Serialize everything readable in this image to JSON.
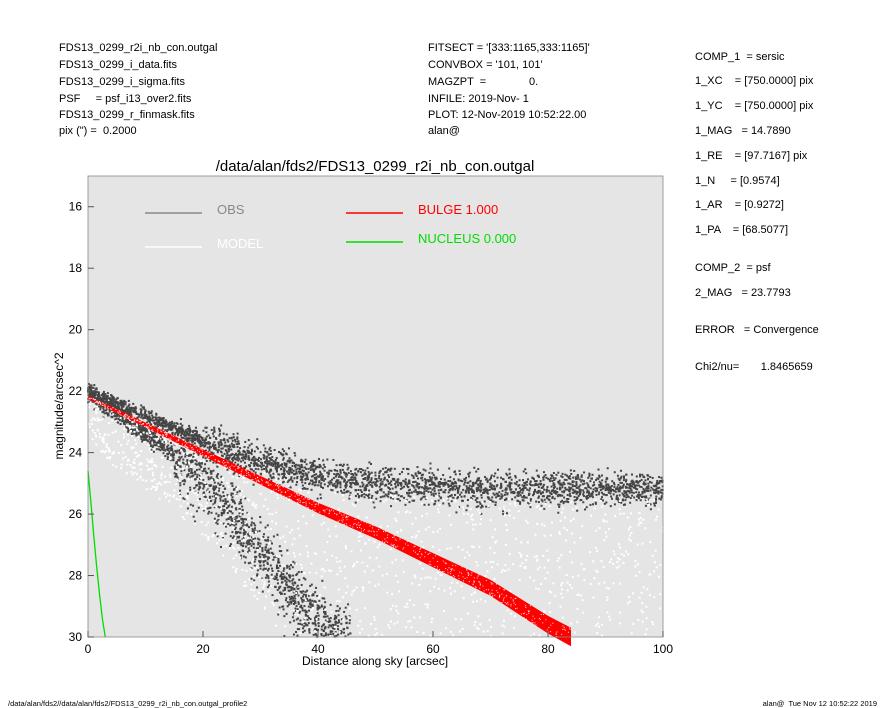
{
  "header": {
    "left": [
      "FDS13_0299_r2i_nb_con.outgal",
      "FDS13_0299_i_data.fits",
      "FDS13_0299_i_sigma.fits",
      "PSF     = psf_i13_over2.fits",
      "FDS13_0299_r_finmask.fits",
      "pix (\") =  0.2000"
    ],
    "middle": [
      "FITSECT = '[333:1165,333:1165]'",
      "CONVBOX = '101, 101'",
      "MAGZPT  =              0.",
      "INFILE: 2019-Nov- 1",
      "PLOT: 12-Nov-2019 10:52:22.00",
      "alan@"
    ]
  },
  "params": {
    "comp1": "COMP_1  = sersic",
    "xc": "1_XC    = [750.0000] pix",
    "yc": "1_YC    = [750.0000] pix",
    "mag": "1_MAG   = 14.7890",
    "re": "1_RE    = [97.7167] pix",
    "n": "1_N     = [0.9574]",
    "ar": "1_AR    = [0.9272]",
    "pa": "1_PA    = [68.5077]",
    "comp2": "COMP_2  = psf",
    "mag2": "2_MAG   = 23.7793",
    "error": "ERROR   = Convergence",
    "chi2": "Chi2/nu=       1.8465659"
  },
  "footer": {
    "left": "/data/alan/fds2//data/alan/fds2/FDS13_0299_r2i_nb_con.outgal_profile2",
    "right": "alan@  Tue Nov 12 10:52:22 2019"
  },
  "colors": {
    "background_plot": "#e5e5e5",
    "obs": "#444444",
    "obs_legend": "#888888",
    "model": "#ffffff",
    "bulge": "#ff0000",
    "nucleus": "#00dd00"
  },
  "chart_data": {
    "type": "scatter",
    "title": "/data/alan/fds2/FDS13_0299_r2i_nb_con.outgal",
    "xlabel": "Distance along sky [arcsec]",
    "ylabel": "magnitude/arcsec^2",
    "xlim": [
      0,
      100
    ],
    "ylim": [
      30,
      15
    ],
    "y_inverted": true,
    "x_ticks": [
      "0",
      "20",
      "40",
      "60",
      "80",
      "100"
    ],
    "y_ticks": [
      "16",
      "18",
      "20",
      "22",
      "24",
      "26",
      "28",
      "30"
    ],
    "legend": [
      {
        "name": "OBS",
        "color": "#888888"
      },
      {
        "name": "MODEL",
        "color": "#ffffff"
      },
      {
        "name": "BULGE  1.000",
        "color": "#ff0000"
      },
      {
        "name": "NUCLEUS  0.000",
        "color": "#00dd00"
      }
    ],
    "series": [
      {
        "name": "OBS",
        "description_values": "upper envelope",
        "x": [
          0,
          5,
          10,
          15,
          20,
          25,
          30,
          35,
          40,
          45,
          50,
          55,
          60,
          65,
          70,
          75,
          80,
          85,
          90,
          95,
          100
        ],
        "y": [
          22.0,
          22.4,
          22.8,
          23.2,
          23.6,
          24.0,
          24.3,
          24.6,
          24.8,
          24.9,
          25.0,
          25.1,
          25.1,
          25.2,
          25.2,
          25.2,
          25.2,
          25.2,
          25.2,
          25.2,
          25.2
        ]
      },
      {
        "name": "OBS_lower",
        "x": [
          0,
          5,
          10,
          15,
          20,
          25,
          30,
          35,
          40,
          45,
          50
        ],
        "y": [
          22.1,
          22.7,
          23.4,
          24.1,
          24.9,
          26.0,
          27.3,
          28.5,
          29.4,
          30.0,
          30.0
        ]
      },
      {
        "name": "BULGE  1.000",
        "x": [
          0,
          10,
          20,
          30,
          40,
          50,
          60,
          70,
          80,
          84
        ],
        "y": [
          22.2,
          23.1,
          24.0,
          24.9,
          25.8,
          26.6,
          27.5,
          28.4,
          29.6,
          30.0
        ]
      },
      {
        "name": "NUCLEUS  0.000",
        "x": [
          0,
          0.5,
          1,
          1.5,
          2,
          2.5,
          3
        ],
        "y": [
          24.6,
          25.6,
          26.7,
          27.7,
          28.6,
          29.4,
          30.0
        ]
      }
    ]
  }
}
